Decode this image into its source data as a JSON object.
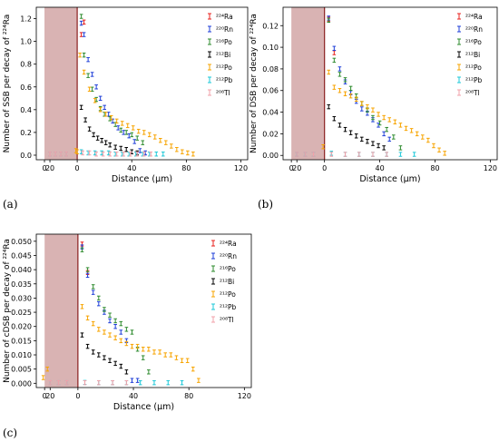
{
  "panels": [
    {
      "letter": "(a)"
    },
    {
      "letter": "(b)"
    },
    {
      "letter": "(c)"
    }
  ],
  "chart_data": [
    {
      "type": "scatter",
      "title": "",
      "xlabel": "Distance (μm)",
      "ylabel": "Number of SSB per decay of ²²⁴Ra",
      "ylim": [
        -0.04,
        1.3
      ],
      "yticks": [
        "0.0",
        "0.2",
        "0.4",
        "0.6",
        "0.8",
        "1.0",
        "1.2"
      ],
      "ytick_values": [
        0,
        0.2,
        0.4,
        0.6,
        0.8,
        1.0,
        1.2
      ],
      "xticks_left": [
        "20",
        "0"
      ],
      "xticks_right": [
        "0",
        "40",
        "80",
        "120"
      ],
      "legend_position": "top-right",
      "series": [
        {
          "name": "²²⁴Ra",
          "color": "#e8201c",
          "x": [
            3,
            5
          ],
          "y": [
            1.06,
            1.17
          ]
        },
        {
          "name": "²²⁰Rn",
          "color": "#1f3fd8",
          "x": [
            3,
            5,
            8,
            11,
            14,
            17,
            20,
            23,
            26,
            30,
            34,
            38,
            42,
            46,
            50
          ],
          "y": [
            1.16,
            1.06,
            0.84,
            0.71,
            0.6,
            0.5,
            0.42,
            0.36,
            0.3,
            0.24,
            0.2,
            0.17,
            0.12,
            0.04,
            0.02
          ]
        },
        {
          "name": "²¹⁶Po",
          "color": "#2e8b2e",
          "x": [
            3,
            5,
            8,
            11,
            14,
            17,
            20,
            24,
            28,
            32,
            36,
            40,
            44,
            48
          ],
          "y": [
            1.22,
            0.88,
            0.7,
            0.58,
            0.49,
            0.41,
            0.36,
            0.32,
            0.27,
            0.22,
            0.2,
            0.18,
            0.15,
            0.11
          ]
        },
        {
          "name": "²¹²Bi",
          "color": "#000000",
          "x": [
            3,
            6,
            9,
            12,
            15,
            18,
            21,
            24,
            28,
            32,
            36,
            40,
            44
          ],
          "y": [
            0.42,
            0.31,
            0.23,
            0.18,
            0.15,
            0.13,
            0.11,
            0.09,
            0.07,
            0.06,
            0.05,
            0.03,
            0.02
          ]
        },
        {
          "name": "²¹²Po",
          "color": "#f7a400",
          "x": [
            -1,
            0,
            2,
            5,
            9,
            13,
            17,
            21,
            25,
            29,
            33,
            37,
            41,
            45,
            49,
            53,
            57,
            61,
            65,
            69,
            73,
            77,
            81,
            85
          ],
          "y": [
            0.04,
            0.03,
            0.88,
            0.73,
            0.58,
            0.48,
            0.4,
            0.36,
            0.33,
            0.3,
            0.28,
            0.26,
            0.24,
            0.21,
            0.2,
            0.18,
            0.16,
            0.13,
            0.11,
            0.08,
            0.05,
            0.03,
            0.02,
            0.01
          ]
        },
        {
          "name": "²¹²Pb",
          "color": "#1ec8d8",
          "x": [
            -20,
            -16,
            -12,
            -8,
            3,
            8,
            13,
            18,
            23,
            28,
            33,
            38,
            43,
            48,
            53,
            58,
            63
          ],
          "y": [
            0.01,
            0.01,
            0.01,
            0.01,
            0.03,
            0.02,
            0.02,
            0.02,
            0.02,
            0.01,
            0.01,
            0.01,
            0.01,
            0.01,
            0.01,
            0.01,
            0.01
          ]
        },
        {
          "name": "²⁰⁸Tl",
          "color": "#f2a0a8",
          "x": [
            -20,
            -16,
            -12,
            -8,
            4,
            9,
            14,
            19,
            24,
            29,
            34,
            39,
            44,
            49,
            54
          ],
          "y": [
            0.01,
            0.01,
            0.01,
            0.01,
            0.02,
            0.02,
            0.01,
            0.01,
            0.01,
            0.01,
            0.01,
            0.01,
            0.01,
            0.01,
            0.01
          ]
        }
      ]
    },
    {
      "type": "scatter",
      "title": "",
      "xlabel": "Distance (μm)",
      "ylabel": "Number of DSB per decay of ²²⁴Ra",
      "ylim": [
        -0.004,
        0.137
      ],
      "yticks": [
        "0.00",
        "0.02",
        "0.04",
        "0.06",
        "0.08",
        "0.10",
        "0.12"
      ],
      "ytick_values": [
        0,
        0.02,
        0.04,
        0.06,
        0.08,
        0.1,
        0.12
      ],
      "xticks_left": [
        "20",
        "0"
      ],
      "xticks_right": [
        "0",
        "40",
        "80",
        "120"
      ],
      "legend_position": "top-right",
      "series": [
        {
          "name": "²²⁴Ra",
          "color": "#e8201c",
          "x": [
            3,
            7
          ],
          "y": [
            0.126,
            0.095
          ]
        },
        {
          "name": "²²⁰Rn",
          "color": "#1f3fd8",
          "x": [
            3,
            7,
            11,
            15,
            19,
            23,
            27,
            31,
            35,
            39,
            43,
            47
          ],
          "y": [
            0.127,
            0.099,
            0.08,
            0.068,
            0.058,
            0.05,
            0.043,
            0.039,
            0.033,
            0.028,
            0.02,
            0.015
          ]
        },
        {
          "name": "²¹⁶Po",
          "color": "#2e8b2e",
          "x": [
            3,
            7,
            11,
            15,
            19,
            23,
            27,
            31,
            35,
            40,
            45,
            50,
            55
          ],
          "y": [
            0.125,
            0.088,
            0.075,
            0.07,
            0.062,
            0.055,
            0.048,
            0.042,
            0.035,
            0.03,
            0.024,
            0.017,
            0.007
          ]
        },
        {
          "name": "²¹²Bi",
          "color": "#000000",
          "x": [
            3,
            7,
            11,
            15,
            19,
            23,
            27,
            31,
            35,
            39,
            43
          ],
          "y": [
            0.045,
            0.034,
            0.028,
            0.024,
            0.021,
            0.018,
            0.015,
            0.013,
            0.011,
            0.009,
            0.007
          ]
        },
        {
          "name": "²¹²Po",
          "color": "#f7a400",
          "x": [
            -1,
            3,
            7,
            11,
            15,
            19,
            23,
            27,
            31,
            35,
            39,
            43,
            47,
            51,
            55,
            59,
            63,
            67,
            71,
            75,
            79,
            83,
            87
          ],
          "y": [
            0.008,
            0.077,
            0.063,
            0.06,
            0.057,
            0.055,
            0.052,
            0.048,
            0.045,
            0.042,
            0.038,
            0.035,
            0.033,
            0.031,
            0.028,
            0.025,
            0.023,
            0.02,
            0.017,
            0.014,
            0.009,
            0.005,
            0.002
          ]
        },
        {
          "name": "²¹²Pb",
          "color": "#1ec8d8",
          "x": [
            -20,
            -14,
            -8,
            5,
            15,
            25,
            35,
            45,
            55,
            65
          ],
          "y": [
            0.001,
            0.001,
            0.001,
            0.002,
            0.001,
            0.001,
            0.001,
            0.001,
            0.001,
            0.001
          ]
        },
        {
          "name": "²⁰⁸Tl",
          "color": "#f2a0a8",
          "x": [
            -20,
            -14,
            -8,
            5,
            15,
            25,
            35,
            45
          ],
          "y": [
            0.001,
            0.001,
            0.001,
            0.001,
            0.001,
            0.001,
            0.001,
            0.001
          ]
        }
      ]
    },
    {
      "type": "scatter",
      "title": "",
      "xlabel": "Distance (μm)",
      "ylabel": "Number of cDSB per decay of ²²⁴Ra",
      "ylim": [
        -0.0015,
        0.0525
      ],
      "yticks": [
        "0.000",
        "0.005",
        "0.010",
        "0.015",
        "0.020",
        "0.025",
        "0.030",
        "0.035",
        "0.040",
        "0.045",
        "0.050"
      ],
      "ytick_values": [
        0,
        0.005,
        0.01,
        0.015,
        0.02,
        0.025,
        0.03,
        0.035,
        0.04,
        0.045,
        0.05
      ],
      "xticks_left": [
        "20",
        "0"
      ],
      "xticks_right": [
        "0",
        "40",
        "80",
        "120"
      ],
      "legend_position": "top-right",
      "series": [
        {
          "name": "²²⁴Ra",
          "color": "#e8201c",
          "x": [
            3,
            7
          ],
          "y": [
            0.049,
            0.039
          ]
        },
        {
          "name": "²²⁰Rn",
          "color": "#1f3fd8",
          "x": [
            3,
            7,
            11,
            15,
            19,
            23,
            27,
            31,
            35,
            39,
            43
          ],
          "y": [
            0.048,
            0.038,
            0.032,
            0.028,
            0.025,
            0.022,
            0.02,
            0.018,
            0.015,
            0.001,
            0.001
          ]
        },
        {
          "name": "²¹⁶Po",
          "color": "#2e8b2e",
          "x": [
            3,
            7,
            11,
            15,
            19,
            23,
            27,
            31,
            35,
            39,
            43,
            47,
            51
          ],
          "y": [
            0.047,
            0.04,
            0.034,
            0.03,
            0.026,
            0.024,
            0.022,
            0.021,
            0.019,
            0.018,
            0.012,
            0.009,
            0.004
          ]
        },
        {
          "name": "²¹²Bi",
          "color": "#000000",
          "x": [
            3,
            7,
            11,
            15,
            19,
            23,
            27,
            31,
            35
          ],
          "y": [
            0.017,
            0.013,
            0.011,
            0.01,
            0.009,
            0.008,
            0.007,
            0.006,
            0.004
          ]
        },
        {
          "name": "²¹²Po",
          "color": "#f7a400",
          "x": [
            -25,
            -22,
            3,
            7,
            11,
            15,
            19,
            23,
            27,
            31,
            35,
            39,
            43,
            47,
            51,
            55,
            59,
            63,
            67,
            71,
            75,
            79,
            83,
            87
          ],
          "y": [
            0.002,
            0.005,
            0.027,
            0.023,
            0.021,
            0.019,
            0.018,
            0.017,
            0.016,
            0.015,
            0.014,
            0.013,
            0.013,
            0.012,
            0.012,
            0.011,
            0.011,
            0.01,
            0.01,
            0.009,
            0.008,
            0.008,
            0.005,
            0.001
          ]
        },
        {
          "name": "²¹²Pb",
          "color": "#1ec8d8",
          "x": [
            -20,
            -14,
            -8,
            5,
            15,
            25,
            35,
            45,
            55,
            65,
            75
          ],
          "y": [
            0.0002,
            0.0002,
            0.0002,
            0.0003,
            0.0002,
            0.0002,
            0.0002,
            0.0002,
            0.0002,
            0.0002,
            0.0002
          ]
        },
        {
          "name": "²⁰⁸Tl",
          "color": "#f2a0a8",
          "x": [
            -20,
            -14,
            -8,
            5,
            15,
            25,
            35
          ],
          "y": [
            0.0002,
            0.0002,
            0.0002,
            0.0002,
            0.0002,
            0.0002,
            0.0002
          ]
        }
      ]
    }
  ]
}
